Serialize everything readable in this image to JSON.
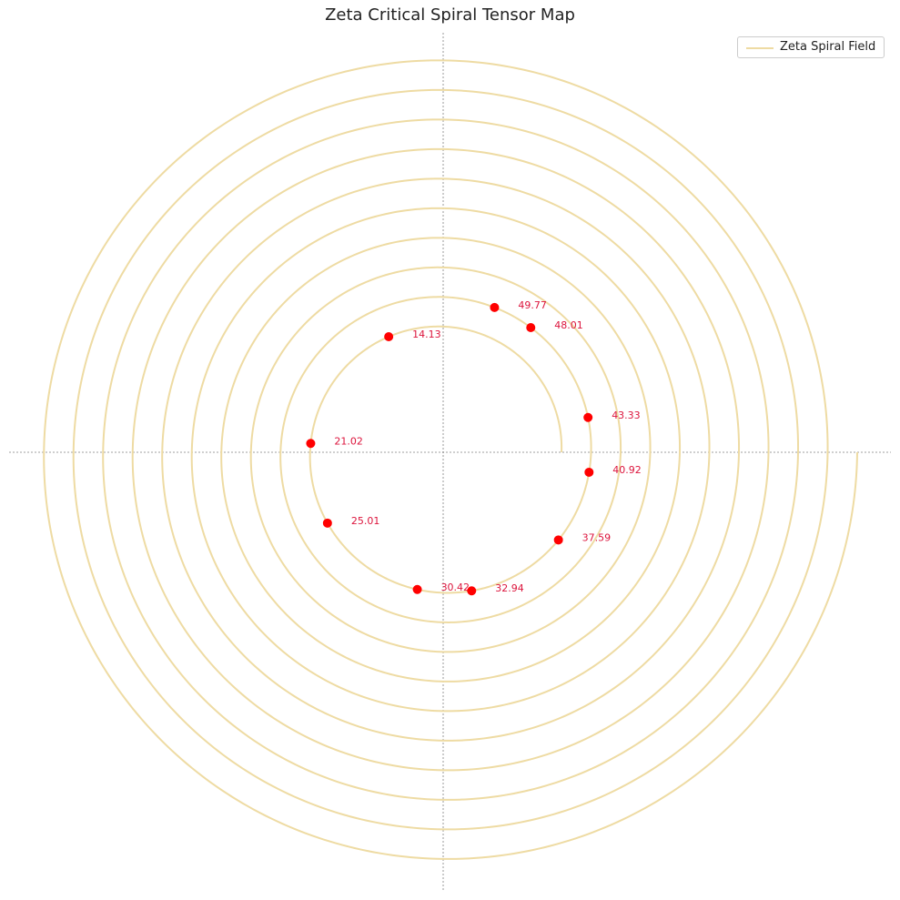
{
  "chart_data": {
    "type": "scatter",
    "title": "Zeta Critical Spiral Tensor Map",
    "xlabel": "",
    "ylabel": "",
    "grid": false,
    "axes_visible": false,
    "center_crosshair": true,
    "legend_position": "top-right",
    "series": [
      {
        "name": "Zeta Spiral Field",
        "kind": "archimedean-spiral",
        "color": "#EEDBA3",
        "turns": 14,
        "radius_start": 4.0,
        "radius_end": 14.0
      },
      {
        "kind": "points",
        "color": "#FF0000",
        "label_color": "#DC143C",
        "points": [
          {
            "t": 14.13,
            "label": "14.13"
          },
          {
            "t": 21.02,
            "label": "21.02"
          },
          {
            "t": 25.01,
            "label": "25.01"
          },
          {
            "t": 30.42,
            "label": "30.42"
          },
          {
            "t": 32.94,
            "label": "32.94"
          },
          {
            "t": 37.59,
            "label": "37.59"
          },
          {
            "t": 40.92,
            "label": "40.92"
          },
          {
            "t": 43.33,
            "label": "43.33"
          },
          {
            "t": 48.01,
            "label": "48.01"
          },
          {
            "t": 49.77,
            "label": "49.77"
          }
        ]
      }
    ]
  },
  "legend": {
    "label": "Zeta Spiral Field"
  },
  "colors": {
    "spiral": "#EEDBA3",
    "points": "#FF0000",
    "labels": "#DC143C",
    "crosshair": "#808080"
  }
}
